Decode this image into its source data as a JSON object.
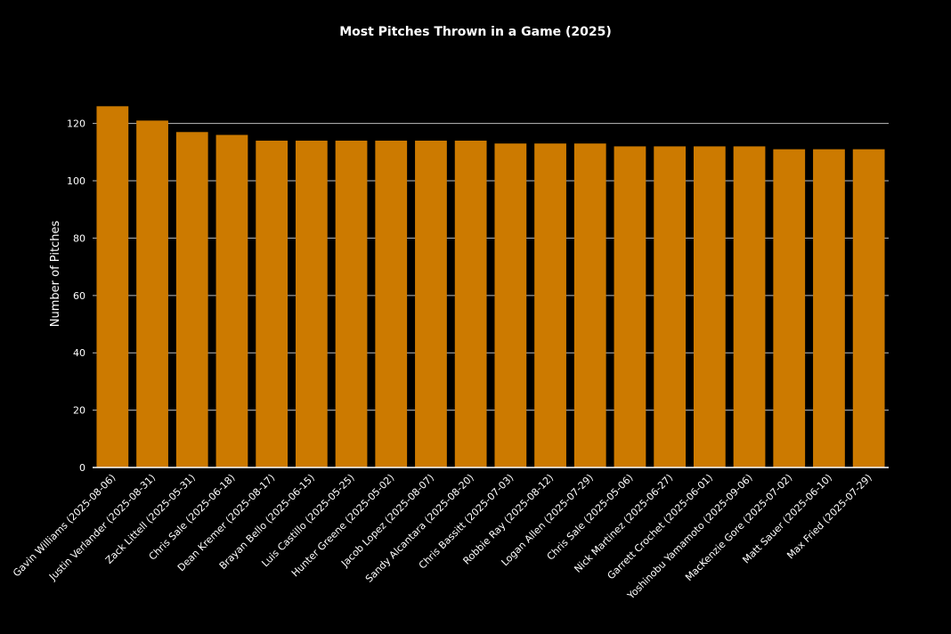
{
  "chart_data": {
    "type": "bar",
    "title": "Most Pitches Thrown in a Game (2025)",
    "xlabel": "",
    "ylabel": "Number of Pitches",
    "ylim": [
      0,
      132
    ],
    "yticks": [
      0,
      20,
      40,
      60,
      80,
      100,
      120
    ],
    "grid": true,
    "categories": [
      "Gavin Williams (2025-08-06)",
      "Justin Verlander (2025-08-31)",
      "Zack Littell (2025-05-31)",
      "Chris Sale (2025-06-18)",
      "Dean Kremer (2025-08-17)",
      "Brayan Bello (2025-06-15)",
      "Luis Castillo (2025-05-25)",
      "Hunter Greene (2025-05-02)",
      "Jacob Lopez (2025-08-07)",
      "Sandy Alcantara (2025-08-20)",
      "Chris Bassitt (2025-07-03)",
      "Robbie Ray (2025-08-12)",
      "Logan Allen (2025-07-29)",
      "Chris Sale (2025-05-06)",
      "Nick Martinez (2025-06-27)",
      "Garrett Crochet (2025-06-01)",
      "Yoshinobu Yamamoto (2025-09-06)",
      "MacKenzie Gore (2025-07-02)",
      "Matt Sauer (2025-06-10)",
      "Max Fried (2025-07-29)"
    ],
    "values": [
      126,
      121,
      117,
      116,
      114,
      114,
      114,
      114,
      114,
      114,
      113,
      113,
      113,
      112,
      112,
      112,
      112,
      111,
      111,
      111
    ],
    "colors": {
      "bar": "#cc7a00",
      "background": "#000000",
      "grid": "#bbbbbb",
      "text": "#ffffff"
    }
  }
}
